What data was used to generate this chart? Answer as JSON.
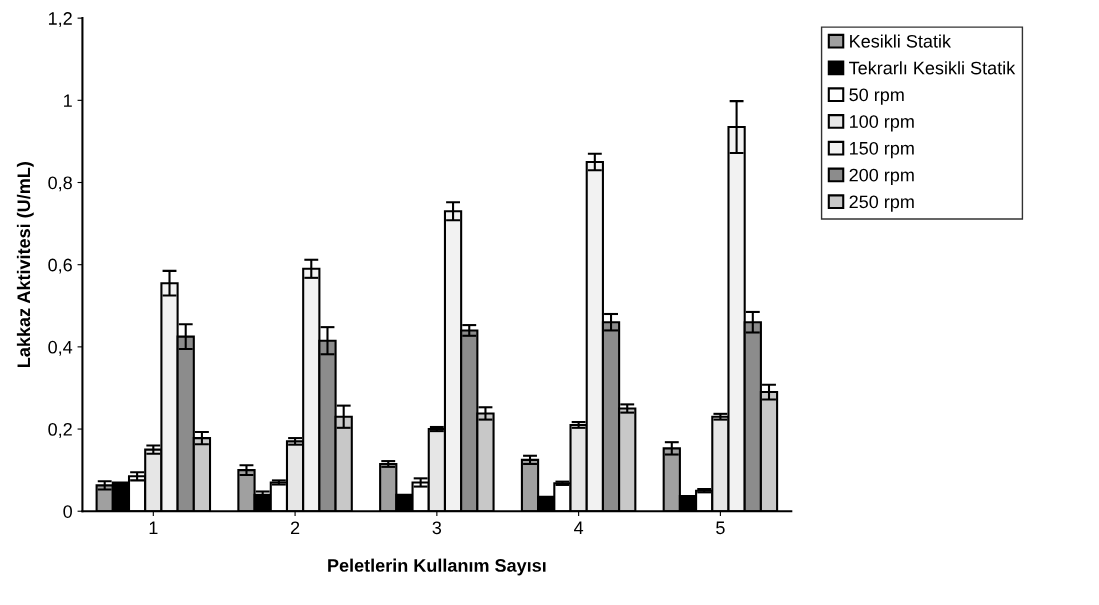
{
  "chart_data": {
    "type": "bar",
    "xlabel": "Peletlerin Kullanım Sayısı",
    "ylabel": "Lakkaz Aktivitesi (U/mL)",
    "categories": [
      "1",
      "2",
      "3",
      "4",
      "5"
    ],
    "series": [
      {
        "name": "Kesikli Statik",
        "color": "#a0a0a0",
        "values": [
          0.063,
          0.1,
          0.115,
          0.125,
          0.153
        ],
        "errors": [
          0.01,
          0.012,
          0.007,
          0.01,
          0.015
        ]
      },
      {
        "name": "Tekrarlı Kesikli Statik",
        "color": "#000000",
        "values": [
          0.07,
          0.04,
          0.04,
          0.035,
          0.037
        ],
        "errors": [
          null,
          0.008,
          null,
          null,
          null
        ]
      },
      {
        "name": "50 rpm",
        "color": "#ffffff",
        "values": [
          0.085,
          0.07,
          0.07,
          0.068,
          0.05
        ],
        "errors": [
          0.01,
          0.005,
          0.01,
          0.004,
          0.004
        ]
      },
      {
        "name": "100 rpm",
        "color": "#e6e6e6",
        "values": [
          0.15,
          0.17,
          0.2,
          0.21,
          0.23
        ],
        "errors": [
          0.01,
          0.008,
          0.005,
          0.007,
          0.007
        ]
      },
      {
        "name": "150 rpm",
        "color": "#f2f2f2",
        "values": [
          0.555,
          0.59,
          0.73,
          0.85,
          0.935
        ],
        "errors": [
          0.03,
          0.022,
          0.022,
          0.02,
          0.063
        ]
      },
      {
        "name": "200 rpm",
        "color": "#8c8c8c",
        "values": [
          0.425,
          0.415,
          0.44,
          0.46,
          0.46
        ],
        "errors": [
          0.03,
          0.033,
          0.013,
          0.02,
          0.025
        ]
      },
      {
        "name": "250 rpm",
        "color": "#c8c8c8",
        "values": [
          0.178,
          0.23,
          0.238,
          0.25,
          0.29
        ],
        "errors": [
          0.015,
          0.027,
          0.015,
          0.01,
          0.018
        ]
      }
    ],
    "ylim": [
      0,
      1.2
    ],
    "yticks": [
      {
        "value": 0,
        "label": "0"
      },
      {
        "value": 0.2,
        "label": "0,2"
      },
      {
        "value": 0.4,
        "label": "0,4"
      },
      {
        "value": 0.6,
        "label": "0,6"
      },
      {
        "value": 0.8,
        "label": "0,8"
      },
      {
        "value": 1,
        "label": "1"
      },
      {
        "value": 1.2,
        "label": "1,2"
      }
    ],
    "grid": false,
    "legend": "top right"
  }
}
